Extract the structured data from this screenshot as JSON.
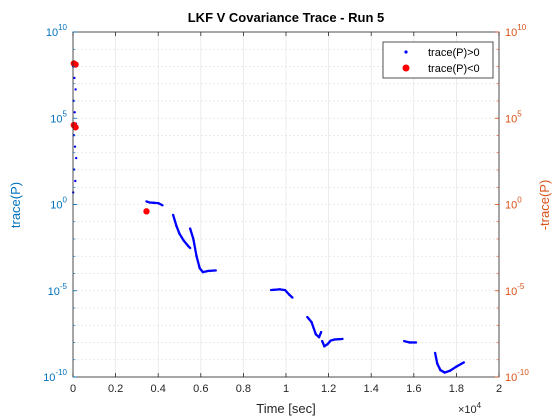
{
  "chart_data": {
    "type": "scatter",
    "title": "LKF V Covariance Trace - Run 5",
    "xlabel": "Time [sec]",
    "x_exponent_label": {
      "base": "×10",
      "exp": "4"
    },
    "ylabel_left": "trace(P)",
    "ylabel_right": "-trace(P)",
    "xlim": [
      0,
      20000
    ],
    "ylim": [
      1e-10,
      10000000000.0
    ],
    "yscale": "log",
    "x_ticks": [
      0,
      2000,
      4000,
      6000,
      8000,
      10000,
      12000,
      14000,
      16000,
      18000,
      20000
    ],
    "x_tick_labels": [
      "0",
      "0.2",
      "0.4",
      "0.6",
      "0.8",
      "1",
      "1.2",
      "1.4",
      "1.6",
      "1.8",
      "2"
    ],
    "y_ticks": [
      {
        "value": 10000000000.0,
        "mant": "10",
        "exp": "10"
      },
      {
        "value": 100000.0,
        "mant": "10",
        "exp": "5"
      },
      {
        "value": 1,
        "mant": "10",
        "exp": "0"
      },
      {
        "value": 1e-05,
        "mant": "10",
        "exp": "-5"
      },
      {
        "value": 1e-10,
        "mant": "10",
        "exp": "-10"
      }
    ],
    "grid": true,
    "legend_position": "top-right",
    "colors": {
      "left_axis": "#0072BD",
      "right_axis": "#D95319",
      "positive": "#0000FF",
      "negative": "#FF0000",
      "grid": "#e4e4e4"
    },
    "series": [
      {
        "name": "trace(P)>0",
        "marker": "dot",
        "segments": [
          {
            "x0": 10,
            "x1": 150,
            "ymax": 100000000,
            "ymin": 5,
            "type": "scatter",
            "n": 12
          },
          {
            "x0": 3450,
            "x1": 4200,
            "points": [
              [
                3450,
                1.5
              ],
              [
                3600,
                1.3
              ],
              [
                3800,
                1.25
              ],
              [
                4000,
                1.2
              ],
              [
                4200,
                0.9
              ]
            ]
          },
          {
            "x0": 4700,
            "x1": 5500,
            "points": [
              [
                4700,
                0.25
              ],
              [
                4850,
                0.06
              ],
              [
                5000,
                0.02
              ],
              [
                5200,
                0.008
              ],
              [
                5400,
                0.004
              ],
              [
                5500,
                0.003
              ]
            ]
          },
          {
            "x0": 5500,
            "x1": 6700,
            "points": [
              [
                5500,
                0.04
              ],
              [
                5650,
                0.01
              ],
              [
                5800,
                0.001
              ],
              [
                5950,
                0.0002
              ],
              [
                6100,
                0.00012
              ],
              [
                6350,
                0.00014
              ],
              [
                6700,
                0.00015
              ]
            ]
          },
          {
            "x0": 9300,
            "x1": 10300,
            "points": [
              [
                9300,
                1.1e-05
              ],
              [
                9700,
                1.2e-05
              ],
              [
                9950,
                1.1e-05
              ],
              [
                10150,
                6e-06
              ],
              [
                10300,
                4e-06
              ]
            ]
          },
          {
            "x0": 11000,
            "x1": 11650,
            "points": [
              [
                11000,
                3e-07
              ],
              [
                11200,
                1.5e-07
              ],
              [
                11400,
                3e-08
              ],
              [
                11550,
                2e-08
              ],
              [
                11650,
                4e-08
              ]
            ]
          },
          {
            "x0": 11700,
            "x1": 12650,
            "points": [
              [
                11700,
                1.2e-08
              ],
              [
                11800,
                6e-09
              ],
              [
                11950,
                8e-09
              ],
              [
                12100,
                1.3e-08
              ],
              [
                12300,
                1.5e-08
              ],
              [
                12650,
                1.6e-08
              ]
            ]
          },
          {
            "x0": 15550,
            "x1": 16100,
            "points": [
              [
                15550,
                1.2e-08
              ],
              [
                15800,
                1e-08
              ],
              [
                16100,
                1e-08
              ]
            ]
          },
          {
            "x0": 17000,
            "x1": 18350,
            "points": [
              [
                17000,
                2.5e-09
              ],
              [
                17100,
                6e-10
              ],
              [
                17250,
                2.5e-10
              ],
              [
                17450,
                1.8e-10
              ],
              [
                17700,
                2.3e-10
              ],
              [
                18000,
                4e-10
              ],
              [
                18350,
                7e-10
              ]
            ]
          }
        ]
      },
      {
        "name": "trace(P)<0",
        "marker": "filled-circle",
        "points": [
          [
            40,
            150000000
          ],
          [
            120,
            130000000
          ],
          [
            40,
            40000
          ],
          [
            120,
            30000
          ],
          [
            3450,
            0.4
          ]
        ]
      }
    ]
  }
}
